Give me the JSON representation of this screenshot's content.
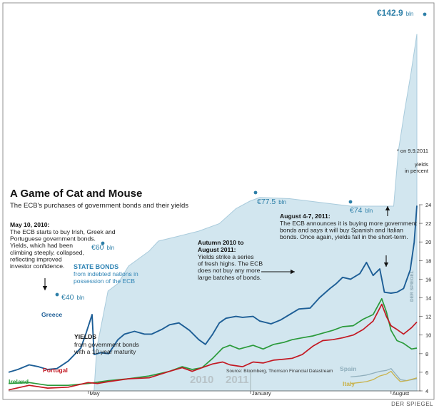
{
  "chart_data": {
    "type": "line",
    "title": "A Game of Cat and Mouse",
    "subtitle": "The ECB's purchases of government bonds and their yields",
    "x_range": [
      "2010-01-01",
      "2011-09-09"
    ],
    "x_labels": [
      {
        "label": "May",
        "date": "2010-05-01"
      },
      {
        "label": "January",
        "date": "2011-01-01"
      },
      {
        "label": "August",
        "date": "2011-08-01"
      }
    ],
    "year_labels": [
      "2010",
      "2011"
    ],
    "yield_axis": {
      "label_top": "yields",
      "label_bottom": "in percent",
      "min": 4,
      "max": 24,
      "ticks": [
        4,
        6,
        8,
        10,
        12,
        14,
        16,
        18,
        20,
        22,
        24
      ]
    },
    "state_bonds": {
      "label": "STATE BONDS",
      "label_sub_1": "from indebted nations in",
      "label_sub_2": "possession of the ECB",
      "unit": "bln",
      "markers": [
        {
          "label": "€40",
          "value": 40,
          "date": "2010-05-31"
        },
        {
          "label": "€60",
          "value": 60,
          "date": "2010-08-15"
        },
        {
          "label": "€77.5",
          "value": 77.5,
          "date": "2011-01-01"
        },
        {
          "label": "€74",
          "value": 74,
          "date": "2011-05-01"
        },
        {
          "label": "€142.9",
          "value": 142.9,
          "date": "2011-09-09"
        }
      ],
      "points": [
        [
          "2010-05-10",
          0
        ],
        [
          "2010-05-14",
          17
        ],
        [
          "2010-05-31",
          40
        ],
        [
          "2010-06-15",
          43
        ],
        [
          "2010-07-01",
          50
        ],
        [
          "2010-08-01",
          56
        ],
        [
          "2010-08-15",
          60
        ],
        [
          "2010-09-15",
          62
        ],
        [
          "2010-10-15",
          64
        ],
        [
          "2010-11-15",
          67
        ],
        [
          "2010-12-10",
          73
        ],
        [
          "2010-12-31",
          76
        ],
        [
          "2011-01-15",
          77.5
        ],
        [
          "2011-03-01",
          77
        ],
        [
          "2011-05-01",
          75
        ],
        [
          "2011-06-01",
          74
        ],
        [
          "2011-07-01",
          74
        ],
        [
          "2011-08-05",
          74
        ],
        [
          "2011-08-12",
          96
        ],
        [
          "2011-08-22",
          113
        ],
        [
          "2011-08-31",
          127
        ],
        [
          "2011-09-09",
          142.9
        ]
      ]
    },
    "series": [
      {
        "name": "Greece",
        "color": "#1d5e96",
        "values": [
          [
            "2010-01-01",
            6
          ],
          [
            "2010-01-15",
            6.3
          ],
          [
            "2010-02-01",
            6.8
          ],
          [
            "2010-02-15",
            6.6
          ],
          [
            "2010-03-01",
            6.3
          ],
          [
            "2010-03-15",
            6.4
          ],
          [
            "2010-04-01",
            7.2
          ],
          [
            "2010-04-20",
            8.6
          ],
          [
            "2010-04-28",
            10.2
          ],
          [
            "2010-05-07",
            12.2
          ],
          [
            "2010-05-10",
            7.9
          ],
          [
            "2010-05-20",
            8.1
          ],
          [
            "2010-06-01",
            8.0
          ],
          [
            "2010-06-15",
            9.5
          ],
          [
            "2010-06-25",
            10.1
          ],
          [
            "2010-07-10",
            10.4
          ],
          [
            "2010-07-25",
            10.1
          ],
          [
            "2010-08-05",
            10.1
          ],
          [
            "2010-08-20",
            10.6
          ],
          [
            "2010-09-01",
            11.1
          ],
          [
            "2010-09-15",
            11.3
          ],
          [
            "2010-10-01",
            10.5
          ],
          [
            "2010-10-15",
            9.5
          ],
          [
            "2010-10-25",
            9.0
          ],
          [
            "2010-11-05",
            10.1
          ],
          [
            "2010-11-15",
            11.3
          ],
          [
            "2010-11-25",
            11.8
          ],
          [
            "2010-12-10",
            12.0
          ],
          [
            "2010-12-20",
            11.9
          ],
          [
            "2011-01-05",
            12.0
          ],
          [
            "2011-01-15",
            11.5
          ],
          [
            "2011-02-01",
            11.2
          ],
          [
            "2011-02-15",
            11.6
          ],
          [
            "2011-03-01",
            12.2
          ],
          [
            "2011-03-15",
            12.8
          ],
          [
            "2011-04-01",
            12.9
          ],
          [
            "2011-04-15",
            14.0
          ],
          [
            "2011-05-01",
            15.0
          ],
          [
            "2011-05-10",
            15.5
          ],
          [
            "2011-05-20",
            16.2
          ],
          [
            "2011-06-01",
            16.0
          ],
          [
            "2011-06-15",
            16.6
          ],
          [
            "2011-06-25",
            17.8
          ],
          [
            "2011-07-05",
            16.4
          ],
          [
            "2011-07-15",
            17.1
          ],
          [
            "2011-07-22",
            14.6
          ],
          [
            "2011-08-01",
            14.5
          ],
          [
            "2011-08-10",
            14.6
          ],
          [
            "2011-08-20",
            15.0
          ],
          [
            "2011-08-30",
            17.0
          ],
          [
            "2011-09-05",
            20.0
          ],
          [
            "2011-09-09",
            23.9
          ]
        ]
      },
      {
        "name": "Ireland",
        "color": "#2a9a3a",
        "values": [
          [
            "2010-01-01",
            4.8
          ],
          [
            "2010-02-01",
            4.9
          ],
          [
            "2010-03-01",
            4.6
          ],
          [
            "2010-04-01",
            4.6
          ],
          [
            "2010-05-01",
            4.8
          ],
          [
            "2010-06-01",
            5.1
          ],
          [
            "2010-07-01",
            5.3
          ],
          [
            "2010-08-01",
            5.6
          ],
          [
            "2010-09-01",
            6.1
          ],
          [
            "2010-09-20",
            6.6
          ],
          [
            "2010-10-05",
            6.3
          ],
          [
            "2010-10-20",
            6.5
          ],
          [
            "2010-11-05",
            7.5
          ],
          [
            "2010-11-20",
            8.6
          ],
          [
            "2010-12-01",
            8.9
          ],
          [
            "2010-12-15",
            8.5
          ],
          [
            "2011-01-05",
            8.9
          ],
          [
            "2011-01-20",
            8.5
          ],
          [
            "2011-02-05",
            9.0
          ],
          [
            "2011-02-20",
            9.2
          ],
          [
            "2011-03-05",
            9.5
          ],
          [
            "2011-03-20",
            9.7
          ],
          [
            "2011-04-05",
            9.9
          ],
          [
            "2011-04-20",
            10.2
          ],
          [
            "2011-05-05",
            10.5
          ],
          [
            "2011-05-20",
            10.9
          ],
          [
            "2011-06-05",
            11.0
          ],
          [
            "2011-06-20",
            11.7
          ],
          [
            "2011-07-05",
            12.2
          ],
          [
            "2011-07-18",
            13.9
          ],
          [
            "2011-07-25",
            12.5
          ],
          [
            "2011-08-01",
            10.5
          ],
          [
            "2011-08-10",
            9.4
          ],
          [
            "2011-08-20",
            9.1
          ],
          [
            "2011-09-01",
            8.5
          ],
          [
            "2011-09-09",
            8.6
          ]
        ]
      },
      {
        "name": "Portugal",
        "color": "#c31822",
        "values": [
          [
            "2010-01-01",
            4.1
          ],
          [
            "2010-02-01",
            4.6
          ],
          [
            "2010-03-01",
            4.3
          ],
          [
            "2010-04-01",
            4.4
          ],
          [
            "2010-05-01",
            4.9
          ],
          [
            "2010-05-15",
            4.8
          ],
          [
            "2010-06-01",
            5.0
          ],
          [
            "2010-07-01",
            5.3
          ],
          [
            "2010-08-01",
            5.4
          ],
          [
            "2010-09-01",
            6.1
          ],
          [
            "2010-09-20",
            6.5
          ],
          [
            "2010-10-05",
            6.1
          ],
          [
            "2010-10-20",
            6.5
          ],
          [
            "2010-11-05",
            6.9
          ],
          [
            "2010-11-20",
            7.1
          ],
          [
            "2010-12-01",
            6.8
          ],
          [
            "2010-12-20",
            6.6
          ],
          [
            "2011-01-05",
            7.1
          ],
          [
            "2011-01-20",
            7.0
          ],
          [
            "2011-02-05",
            7.3
          ],
          [
            "2011-02-20",
            7.4
          ],
          [
            "2011-03-05",
            7.5
          ],
          [
            "2011-03-20",
            7.9
          ],
          [
            "2011-04-05",
            8.8
          ],
          [
            "2011-04-20",
            9.4
          ],
          [
            "2011-05-05",
            9.5
          ],
          [
            "2011-05-20",
            9.7
          ],
          [
            "2011-06-05",
            10.0
          ],
          [
            "2011-06-20",
            10.6
          ],
          [
            "2011-07-05",
            11.5
          ],
          [
            "2011-07-18",
            13.3
          ],
          [
            "2011-07-25",
            12.0
          ],
          [
            "2011-08-01",
            11.0
          ],
          [
            "2011-08-10",
            10.6
          ],
          [
            "2011-08-20",
            10.1
          ],
          [
            "2011-09-01",
            10.8
          ],
          [
            "2011-09-09",
            11.4
          ]
        ]
      },
      {
        "name": "Spain",
        "color": "#8faebc",
        "values": [
          [
            "2011-06-01",
            5.5
          ],
          [
            "2011-06-15",
            5.6
          ],
          [
            "2011-06-25",
            5.7
          ],
          [
            "2011-07-05",
            5.9
          ],
          [
            "2011-07-15",
            6.1
          ],
          [
            "2011-07-25",
            6.2
          ],
          [
            "2011-08-01",
            6.4
          ],
          [
            "2011-08-08",
            5.8
          ],
          [
            "2011-08-15",
            5.2
          ],
          [
            "2011-08-25",
            5.1
          ],
          [
            "2011-09-09",
            5.3
          ]
        ]
      },
      {
        "name": "Italy",
        "color": "#c9b24a",
        "values": [
          [
            "2011-06-01",
            4.8
          ],
          [
            "2011-06-15",
            4.9
          ],
          [
            "2011-06-25",
            5.0
          ],
          [
            "2011-07-05",
            5.2
          ],
          [
            "2011-07-15",
            5.6
          ],
          [
            "2011-07-25",
            5.8
          ],
          [
            "2011-08-01",
            6.1
          ],
          [
            "2011-08-08",
            5.5
          ],
          [
            "2011-08-15",
            5.0
          ],
          [
            "2011-08-25",
            5.1
          ],
          [
            "2011-09-09",
            5.4
          ]
        ]
      }
    ],
    "annotations": [
      {
        "heading": "May 10, 2010:",
        "lines": [
          "The ECB starts to buy Irish, Greek and",
          "Portuguese government bonds.",
          "Yields, which had been",
          "climbing steeply, collapsed,",
          "reflecting improved",
          "investor confidence."
        ]
      },
      {
        "heading": "Autumn 2010 to",
        "heading2": "August 2011:",
        "lines": [
          "Yields strike a series",
          "of fresh highs. The ECB",
          "does not buy any more",
          "large batches of bonds."
        ]
      },
      {
        "heading": "August 4-7, 2011:",
        "lines": [
          "The ECB announces it is buying more government",
          "bonds and says it will buy Spanish and Italian",
          "bonds. Once again, yields fall in the short-term."
        ]
      }
    ],
    "yields_label": "YIELDS",
    "yields_sub_1": "from government bonds",
    "yields_sub_2": "with a 10 year maturity",
    "date_note": "* on 9.9.2011",
    "source": "Source: Bloomberg, Thomson Financial Datastream",
    "watermark": "DER SPIEGEL",
    "credit": "DER SPIEGEL",
    "colors": {
      "area": "#d2e6ef",
      "area_stroke": "#a9cbdc",
      "accent": "#2d7fa8"
    }
  }
}
